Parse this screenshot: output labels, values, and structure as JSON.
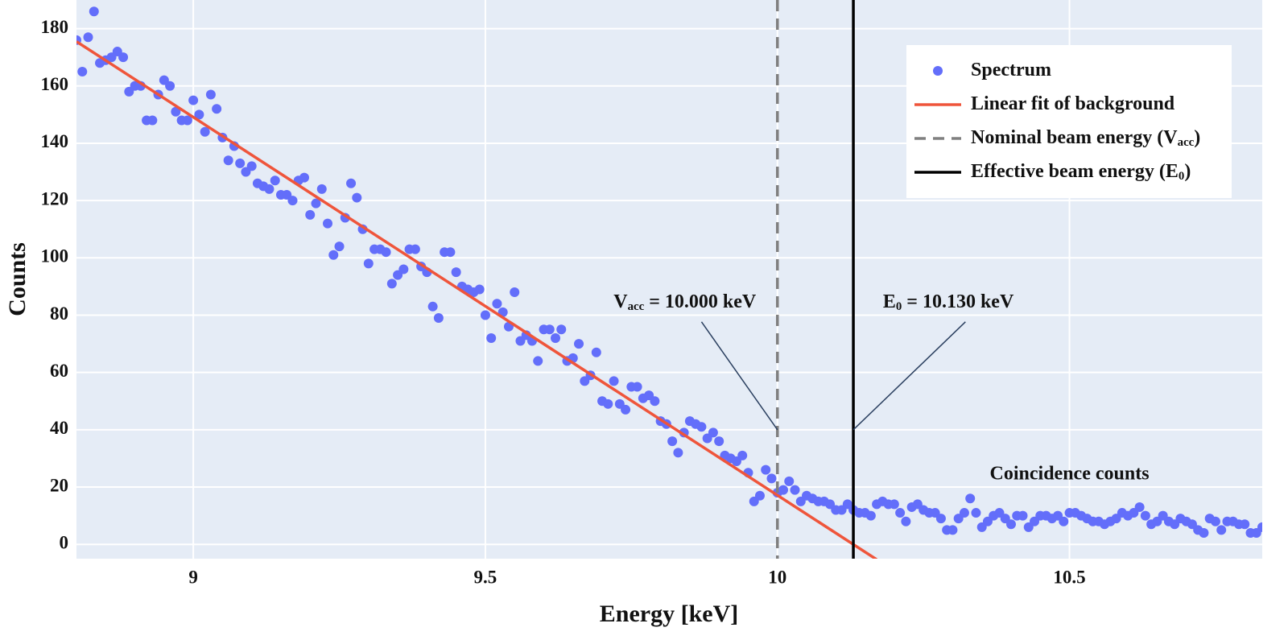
{
  "chart_data": {
    "type": "scatter",
    "x_label": "Energy [keV]",
    "y_label": "Counts",
    "xlim": [
      8.8,
      10.83
    ],
    "ylim": [
      -5,
      190
    ],
    "xticks": [
      9,
      9.5,
      10,
      10.5
    ],
    "yticks": [
      0,
      20,
      40,
      60,
      80,
      100,
      120,
      140,
      160,
      180
    ],
    "grid": true,
    "legend": "top-right",
    "series": [
      {
        "name": [
          "Spectrum"
        ],
        "type": "scatter",
        "color": "#636efa",
        "x": [
          8.8,
          8.81,
          8.82,
          8.83,
          8.84,
          8.85,
          8.86,
          8.87,
          8.88,
          8.89,
          8.9,
          8.91,
          8.92,
          8.93,
          8.94,
          8.95,
          8.96,
          8.97,
          8.98,
          8.99,
          9.0,
          9.01,
          9.02,
          9.03,
          9.04,
          9.05,
          9.06,
          9.07,
          9.08,
          9.09,
          9.1,
          9.11,
          9.12,
          9.13,
          9.14,
          9.15,
          9.16,
          9.17,
          9.18,
          9.19,
          9.2,
          9.21,
          9.22,
          9.23,
          9.24,
          9.25,
          9.26,
          9.27,
          9.28,
          9.29,
          9.3,
          9.31,
          9.32,
          9.33,
          9.34,
          9.35,
          9.36,
          9.37,
          9.38,
          9.39,
          9.4,
          9.41,
          9.42,
          9.43,
          9.44,
          9.45,
          9.46,
          9.47,
          9.48,
          9.49,
          9.5,
          9.51,
          9.52,
          9.53,
          9.54,
          9.55,
          9.56,
          9.57,
          9.58,
          9.59,
          9.6,
          9.61,
          9.62,
          9.63,
          9.64,
          9.65,
          9.66,
          9.67,
          9.68,
          9.69,
          9.7,
          9.71,
          9.72,
          9.73,
          9.74,
          9.75,
          9.76,
          9.77,
          9.78,
          9.79,
          9.8,
          9.81,
          9.82,
          9.83,
          9.84,
          9.85,
          9.86,
          9.87,
          9.88,
          9.89,
          9.9,
          9.91,
          9.92,
          9.93,
          9.94,
          9.95,
          9.96,
          9.97,
          9.98,
          9.99,
          10.0,
          10.01,
          10.02,
          10.03,
          10.04,
          10.05,
          10.06,
          10.07,
          10.08,
          10.09,
          10.1,
          10.11,
          10.12,
          10.13,
          10.14,
          10.15,
          10.16,
          10.17,
          10.18,
          10.19,
          10.2,
          10.21,
          10.22,
          10.23,
          10.24,
          10.25,
          10.26,
          10.27,
          10.28,
          10.29,
          10.3,
          10.31,
          10.32,
          10.33,
          10.34,
          10.35,
          10.36,
          10.37,
          10.38,
          10.39,
          10.4,
          10.41,
          10.42,
          10.43,
          10.44,
          10.45,
          10.46,
          10.47,
          10.48,
          10.49,
          10.5,
          10.51,
          10.52,
          10.53,
          10.54,
          10.55,
          10.56,
          10.57,
          10.58,
          10.59,
          10.6,
          10.61,
          10.62,
          10.63,
          10.64,
          10.65,
          10.66,
          10.67,
          10.68,
          10.69,
          10.7,
          10.71,
          10.72,
          10.73,
          10.74,
          10.75,
          10.76,
          10.77,
          10.78,
          10.79,
          10.8,
          10.81,
          10.82,
          10.83
        ],
        "values": [
          176,
          165,
          177,
          186,
          168,
          169,
          170,
          172,
          170,
          158,
          160,
          160,
          148,
          148,
          157,
          162,
          160,
          151,
          148,
          148,
          155,
          150,
          144,
          157,
          152,
          142,
          134,
          139,
          133,
          130,
          132,
          126,
          125,
          124,
          127,
          122,
          122,
          120,
          127,
          128,
          115,
          119,
          124,
          112,
          101,
          104,
          114,
          126,
          121,
          110,
          98,
          103,
          103,
          102,
          91,
          94,
          96,
          103,
          103,
          97,
          95,
          83,
          79,
          102,
          102,
          95,
          90,
          89,
          88,
          89,
          80,
          72,
          84,
          81,
          76,
          88,
          71,
          73,
          71,
          64,
          75,
          75,
          72,
          75,
          64,
          65,
          70,
          57,
          59,
          67,
          50,
          49,
          57,
          49,
          47,
          55,
          55,
          51,
          52,
          50,
          43,
          42,
          36,
          32,
          39,
          43,
          42,
          41,
          37,
          39,
          36,
          31,
          30,
          29,
          31,
          25,
          15,
          17,
          26,
          23,
          18,
          19,
          22,
          19,
          15,
          17,
          16,
          15,
          15,
          14,
          12,
          12,
          14,
          12,
          11,
          11,
          10,
          14,
          15,
          14,
          14,
          11,
          8,
          13,
          14,
          12,
          11,
          11,
          9,
          5,
          5,
          9,
          11,
          16,
          11,
          6,
          8,
          10,
          11,
          9,
          7,
          10,
          10,
          6,
          8,
          10,
          10,
          9,
          10,
          8,
          11,
          11,
          10,
          9,
          8,
          8,
          7,
          8,
          9,
          11,
          10,
          11,
          13,
          10,
          7,
          8,
          10,
          8,
          7,
          9,
          8,
          7,
          5,
          4,
          9,
          8,
          5,
          8,
          8,
          7,
          7,
          4,
          4,
          6
        ]
      },
      {
        "name": [
          "Linear fit of background"
        ],
        "type": "line",
        "color": "#ef553b",
        "x": [
          8.8,
          10.17
        ],
        "values": [
          175.5,
          -5.3
        ]
      },
      {
        "name": [
          "Nominal beam energy (V",
          "acc",
          ")"
        ],
        "type": "vline",
        "color": "#808080",
        "dash": true,
        "x": 10.0
      },
      {
        "name": [
          "Effective beam energy (E",
          "0",
          ")"
        ],
        "type": "vline",
        "color": "#000000",
        "dash": false,
        "x": 10.13
      }
    ],
    "annotations": [
      {
        "text": [
          "V",
          "acc",
          " = 10.000 keV"
        ],
        "x": 10.0,
        "y": 40,
        "showarrow": true
      },
      {
        "text": [
          "E",
          "0",
          " = 10.130 keV"
        ],
        "x": 10.13,
        "y": 40,
        "showarrow": true
      },
      {
        "text": [
          "Coincidence counts"
        ],
        "x": 10.5,
        "y": 24.4,
        "showarrow": false
      }
    ]
  }
}
